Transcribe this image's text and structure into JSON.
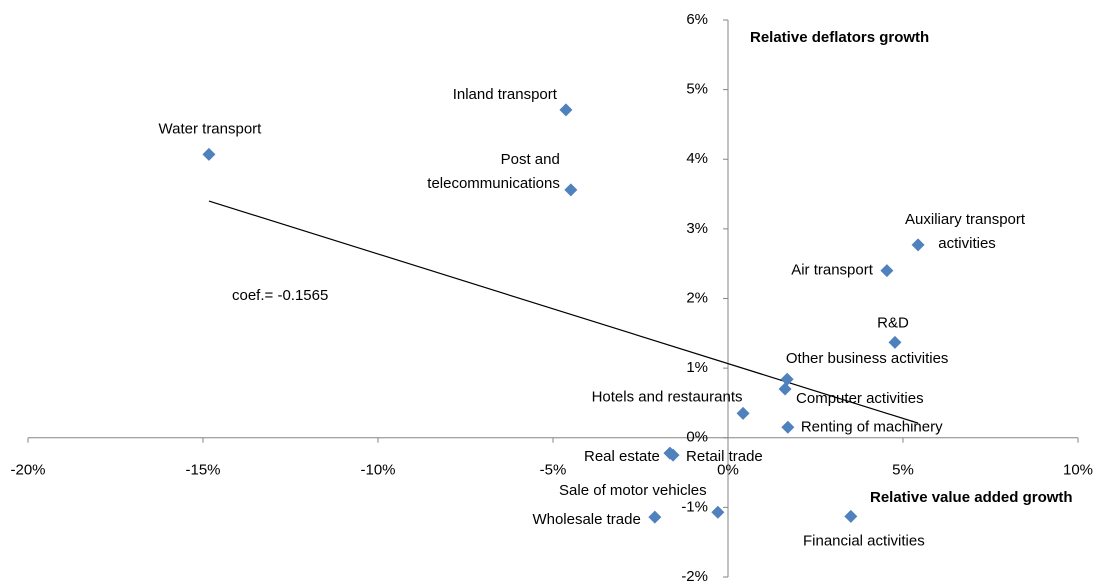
{
  "chart_data": {
    "type": "scatter",
    "x_axis_label": "Relative value added growth",
    "y_axis_label": "Relative deflators growth",
    "annotation": "coef.= -0.1565",
    "color": "#4f81bd",
    "labels": [
      "Water transport",
      "Inland transport",
      "Post and telecommunications",
      "Auxiliary transport activities",
      "Air transport",
      "R&D",
      "Other business activities",
      "Computer activities",
      "Hotels and restaurants",
      "Renting of machinery",
      "Real estate",
      "Retail trade",
      "Sale of motor vehicles",
      "Wholesale trade",
      "Financial activities"
    ],
    "x": [
      -14.83,
      -4.63,
      -4.49,
      5.43,
      4.54,
      4.77,
      1.69,
      1.63,
      0.43,
      1.71,
      -1.66,
      -1.57,
      -0.29,
      -2.09,
      3.51
    ],
    "values": [
      4.07,
      4.71,
      3.56,
      2.77,
      2.4,
      1.37,
      0.84,
      0.7,
      0.35,
      0.15,
      -0.22,
      -0.25,
      -1.07,
      -1.14,
      -1.13
    ],
    "trendline": {
      "x": [
        -14.83,
        5.43
      ],
      "values": [
        3.4,
        0.21
      ]
    },
    "xlim": [
      -20,
      10
    ],
    "ylim": [
      -2,
      6
    ],
    "xticks": [
      {
        "value": -20,
        "label": "-20%"
      },
      {
        "value": -15,
        "label": "-15%"
      },
      {
        "value": -10,
        "label": "-10%"
      },
      {
        "value": -5,
        "label": "-5%"
      },
      {
        "value": 0,
        "label": "0%"
      },
      {
        "value": 5,
        "label": "5%"
      },
      {
        "value": 10,
        "label": "10%"
      }
    ],
    "yticks": [
      {
        "value": -2,
        "label": "-2%"
      },
      {
        "value": -1,
        "label": "-1%"
      },
      {
        "value": 0,
        "label": "0%"
      },
      {
        "value": 1,
        "label": "1%"
      },
      {
        "value": 2,
        "label": "2%"
      },
      {
        "value": 3,
        "label": "3%"
      },
      {
        "value": 4,
        "label": "4%"
      },
      {
        "value": 5,
        "label": "5%"
      },
      {
        "value": 6,
        "label": "6%"
      }
    ]
  }
}
